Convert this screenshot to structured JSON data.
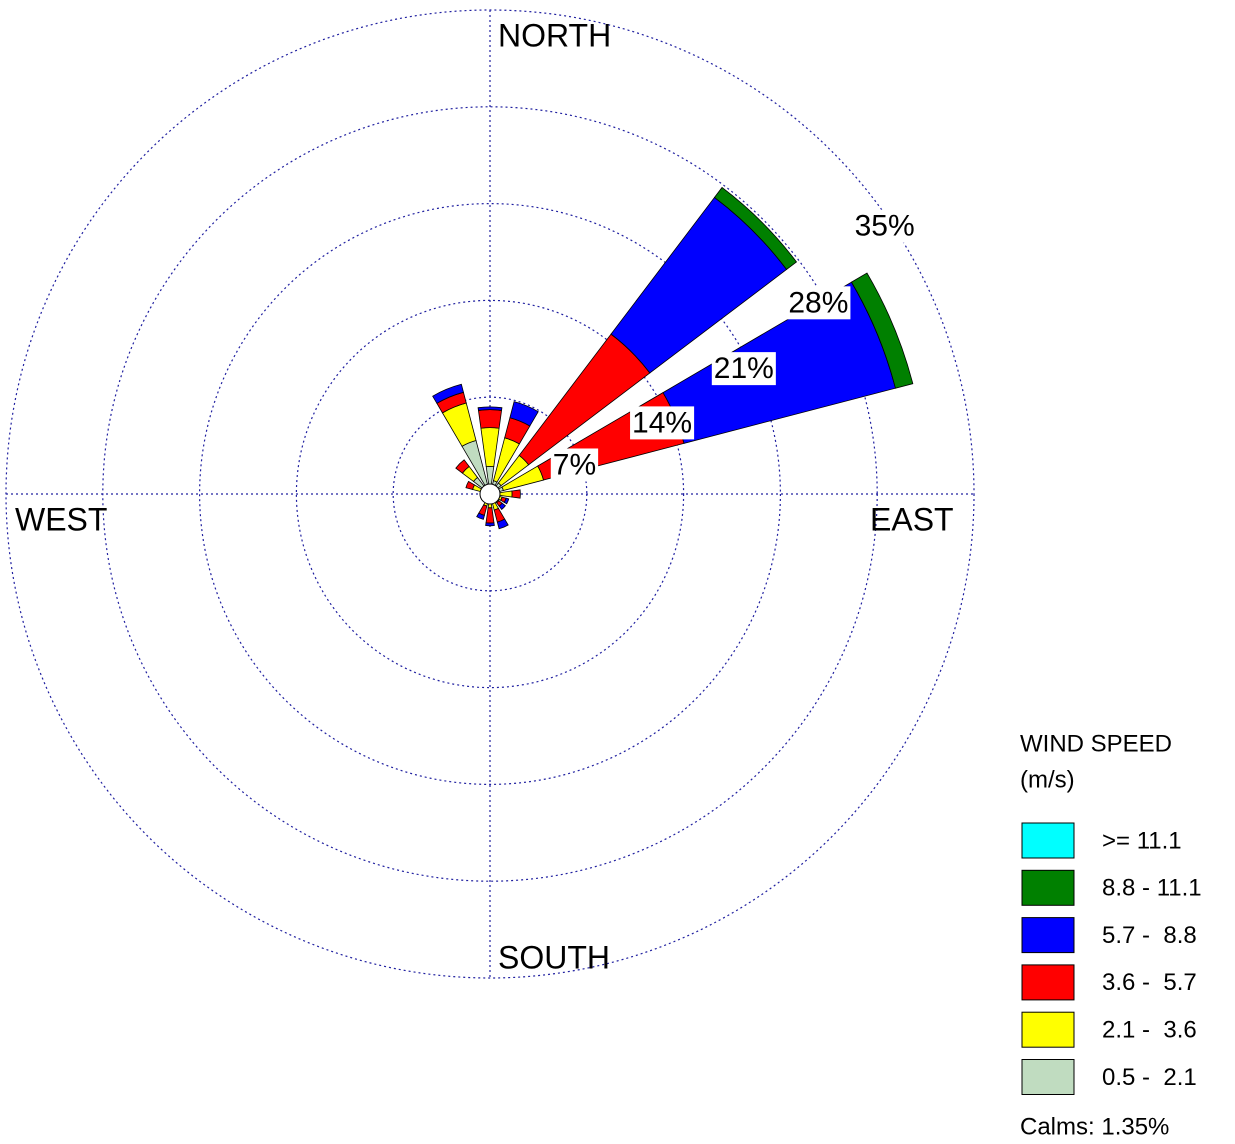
{
  "chart_data": {
    "type": "windrose",
    "compass": {
      "north": "NORTH",
      "east": "EAST",
      "south": "SOUTH",
      "west": "WEST"
    },
    "categories": [
      null,
      null,
      null,
      null,
      null,
      null,
      null,
      null,
      null,
      null,
      null,
      null,
      null,
      null,
      null,
      null
    ],
    "rlim": [
      0,
      35
    ],
    "rticks": [
      {
        "value": 7,
        "label": "7%"
      },
      {
        "value": 14,
        "label": "14%"
      },
      {
        "value": 21,
        "label": "21%"
      },
      {
        "value": 28,
        "label": "28%"
      },
      {
        "value": 35,
        "label": "35%"
      }
    ],
    "grid": true,
    "legend_title": [
      "WIND SPEED",
      "(m/s)"
    ],
    "series": [
      {
        "name": ">= 11.1",
        "color": "#00ffff",
        "values": [
          0,
          0,
          0,
          0,
          0,
          0,
          0,
          0,
          0,
          0,
          0,
          0,
          0,
          0,
          0,
          0
        ]
      },
      {
        "name": "8.8 - 11.1",
        "color": "#008000",
        "values": [
          0,
          0,
          0.9,
          1.3,
          0,
          0,
          0,
          0,
          0,
          0,
          0,
          0,
          0,
          0,
          0,
          0
        ]
      },
      {
        "name": "5.7 -  8.8",
        "color": "#0000ff",
        "values": [
          0.2,
          1.2,
          12.4,
          15.8,
          0,
          0.2,
          0.3,
          0.5,
          0.2,
          0.3,
          0,
          0,
          0,
          0,
          0,
          0.6
        ]
      },
      {
        "name": "3.6 -  5.7",
        "color": "#ff0000",
        "values": [
          1.3,
          1.5,
          11.0,
          10.5,
          0.6,
          0.3,
          0.3,
          0.9,
          1.1,
          0.7,
          0.2,
          0.1,
          0.2,
          0.5,
          0.6,
          0.8
        ]
      },
      {
        "name": "2.1 -  3.6",
        "color": "#ffff00",
        "values": [
          2.8,
          3.2,
          2.5,
          3.0,
          1.0,
          0.6,
          0.5,
          0.8,
          0.6,
          0.6,
          0.3,
          0.2,
          0.3,
          0.8,
          1.0,
          2.8
        ]
      },
      {
        "name": "0.5 -  2.1",
        "color": "#c0dcc0",
        "values": [
          2.0,
          1.0,
          1.0,
          1.0,
          0.6,
          0.3,
          0.3,
          0.4,
          0.4,
          0.3,
          0.2,
          0.2,
          0.2,
          0.5,
          1.5,
          4.0
        ]
      }
    ],
    "calms": 1.35,
    "calms_label": "Calms: 1.35%"
  }
}
